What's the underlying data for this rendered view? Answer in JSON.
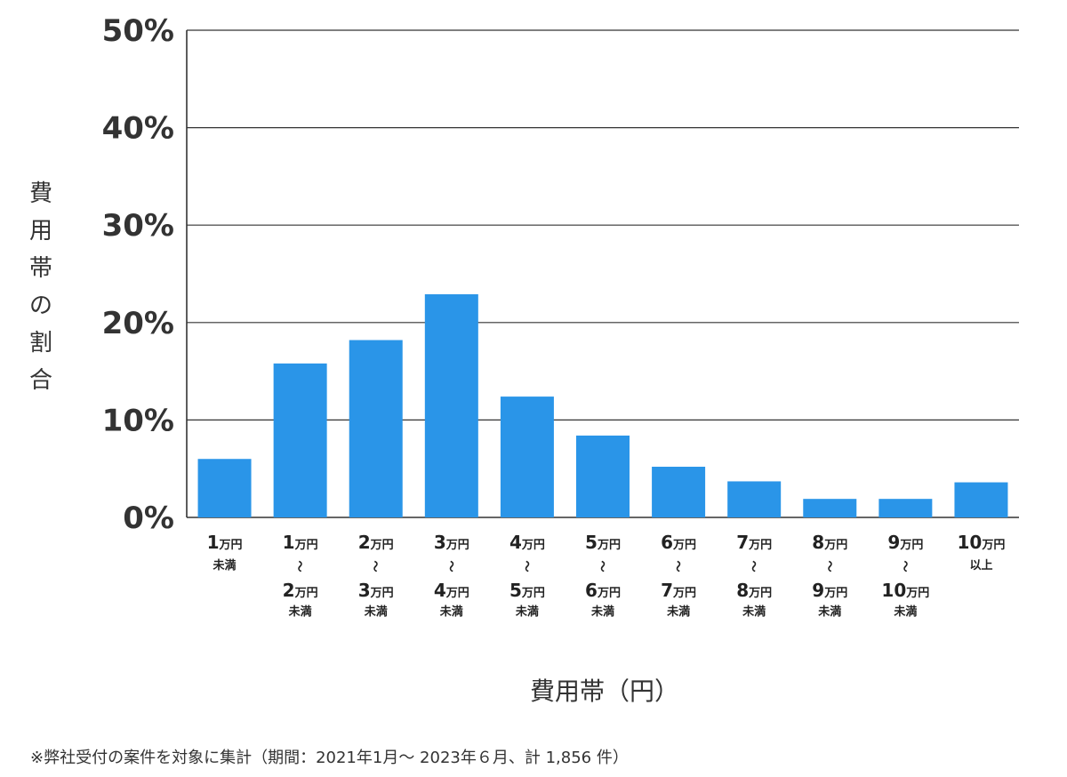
{
  "chart_data": {
    "type": "bar",
    "categories": [
      {
        "top": "1",
        "top_unit": "万円",
        "bottom": "",
        "bottom_unit": "",
        "suffix": "未満",
        "range": false
      },
      {
        "top": "1",
        "top_unit": "万円",
        "bottom": "2",
        "bottom_unit": "万円",
        "suffix": "未満",
        "range": true
      },
      {
        "top": "2",
        "top_unit": "万円",
        "bottom": "3",
        "bottom_unit": "万円",
        "suffix": "未満",
        "range": true
      },
      {
        "top": "3",
        "top_unit": "万円",
        "bottom": "4",
        "bottom_unit": "万円",
        "suffix": "未満",
        "range": true
      },
      {
        "top": "4",
        "top_unit": "万円",
        "bottom": "5",
        "bottom_unit": "万円",
        "suffix": "未満",
        "range": true
      },
      {
        "top": "5",
        "top_unit": "万円",
        "bottom": "6",
        "bottom_unit": "万円",
        "suffix": "未満",
        "range": true
      },
      {
        "top": "6",
        "top_unit": "万円",
        "bottom": "7",
        "bottom_unit": "万円",
        "suffix": "未満",
        "range": true
      },
      {
        "top": "7",
        "top_unit": "万円",
        "bottom": "8",
        "bottom_unit": "万円",
        "suffix": "未満",
        "range": true
      },
      {
        "top": "8",
        "top_unit": "万円",
        "bottom": "9",
        "bottom_unit": "万円",
        "suffix": "未満",
        "range": true
      },
      {
        "top": "9",
        "top_unit": "万円",
        "bottom": "10",
        "bottom_unit": "万円",
        "suffix": "未満",
        "range": true
      },
      {
        "top": "10",
        "top_unit": "万円",
        "bottom": "",
        "bottom_unit": "",
        "suffix": "以上",
        "range": false
      }
    ],
    "range_symbol": "〜",
    "values": [
      6.0,
      15.8,
      18.2,
      22.9,
      12.4,
      8.4,
      5.2,
      3.7,
      1.9,
      1.9,
      3.6
    ],
    "ylim": [
      0,
      50
    ],
    "yticks": [
      0,
      10,
      20,
      30,
      40,
      50
    ],
    "ytick_labels": [
      "0%",
      "10%",
      "20%",
      "30%",
      "40%",
      "50%"
    ],
    "ylabel": "費用帯の割合",
    "xlabel": "費用帯（円）",
    "grid": true,
    "bar_color": "#2a95e8",
    "grid_color": "#333333"
  },
  "footnote": "※弊社受付の案件を対象に集計（期間：2021年1月～ 2023年６月、計 1,856 件）"
}
